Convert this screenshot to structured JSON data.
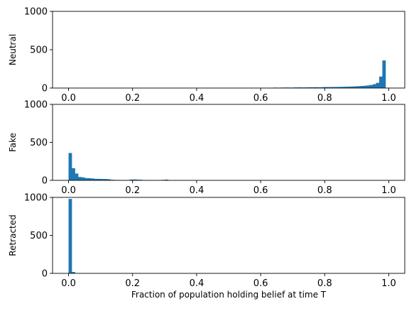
{
  "chart_data": {
    "type": "bar",
    "bar_color": "#1f77b4",
    "bin_width": 0.01,
    "xlim": [
      -0.05,
      1.05
    ],
    "ylim": [
      0,
      1000
    ],
    "xticks": [
      0.0,
      0.2,
      0.4,
      0.6,
      0.8,
      1.0
    ],
    "xtick_labels": [
      "0.0",
      "0.2",
      "0.4",
      "0.6",
      "0.8",
      "1.0"
    ],
    "yticks": [
      0,
      500,
      1000
    ],
    "ytick_labels": [
      "0",
      "500",
      "1000"
    ],
    "xlabel": "Fraction of population holding belief at time T",
    "grid": false,
    "panels": [
      {
        "ylabel": "Neutral",
        "bins": [
          {
            "x": 0.62,
            "y": 4
          },
          {
            "x": 0.64,
            "y": 6
          },
          {
            "x": 0.65,
            "y": 5
          },
          {
            "x": 0.66,
            "y": 6
          },
          {
            "x": 0.67,
            "y": 7
          },
          {
            "x": 0.68,
            "y": 7
          },
          {
            "x": 0.69,
            "y": 6
          },
          {
            "x": 0.7,
            "y": 8
          },
          {
            "x": 0.71,
            "y": 8
          },
          {
            "x": 0.72,
            "y": 9
          },
          {
            "x": 0.73,
            "y": 8
          },
          {
            "x": 0.74,
            "y": 9
          },
          {
            "x": 0.75,
            "y": 10
          },
          {
            "x": 0.76,
            "y": 10
          },
          {
            "x": 0.77,
            "y": 11
          },
          {
            "x": 0.78,
            "y": 10
          },
          {
            "x": 0.79,
            "y": 12
          },
          {
            "x": 0.8,
            "y": 13
          },
          {
            "x": 0.81,
            "y": 13
          },
          {
            "x": 0.82,
            "y": 14
          },
          {
            "x": 0.83,
            "y": 14
          },
          {
            "x": 0.84,
            "y": 15
          },
          {
            "x": 0.85,
            "y": 16
          },
          {
            "x": 0.86,
            "y": 17
          },
          {
            "x": 0.87,
            "y": 18
          },
          {
            "x": 0.88,
            "y": 20
          },
          {
            "x": 0.89,
            "y": 22
          },
          {
            "x": 0.9,
            "y": 24
          },
          {
            "x": 0.91,
            "y": 27
          },
          {
            "x": 0.92,
            "y": 30
          },
          {
            "x": 0.93,
            "y": 34
          },
          {
            "x": 0.94,
            "y": 40
          },
          {
            "x": 0.95,
            "y": 50
          },
          {
            "x": 0.96,
            "y": 68
          },
          {
            "x": 0.97,
            "y": 150
          },
          {
            "x": 0.98,
            "y": 360
          }
        ]
      },
      {
        "ylabel": "Fake",
        "bins": [
          {
            "x": 0.0,
            "y": 360
          },
          {
            "x": 0.01,
            "y": 160
          },
          {
            "x": 0.02,
            "y": 90
          },
          {
            "x": 0.03,
            "y": 45
          },
          {
            "x": 0.04,
            "y": 40
          },
          {
            "x": 0.05,
            "y": 30
          },
          {
            "x": 0.06,
            "y": 28
          },
          {
            "x": 0.07,
            "y": 25
          },
          {
            "x": 0.08,
            "y": 20
          },
          {
            "x": 0.09,
            "y": 20
          },
          {
            "x": 0.1,
            "y": 18
          },
          {
            "x": 0.11,
            "y": 18
          },
          {
            "x": 0.12,
            "y": 15
          },
          {
            "x": 0.13,
            "y": 8
          },
          {
            "x": 0.14,
            "y": 6
          },
          {
            "x": 0.15,
            "y": 5
          },
          {
            "x": 0.16,
            "y": 5
          },
          {
            "x": 0.17,
            "y": 4
          },
          {
            "x": 0.18,
            "y": 4
          },
          {
            "x": 0.19,
            "y": 10
          },
          {
            "x": 0.2,
            "y": 12
          },
          {
            "x": 0.21,
            "y": 10
          },
          {
            "x": 0.22,
            "y": 8
          },
          {
            "x": 0.24,
            "y": 4
          },
          {
            "x": 0.25,
            "y": 3
          },
          {
            "x": 0.27,
            "y": 3
          },
          {
            "x": 0.29,
            "y": 6
          },
          {
            "x": 0.3,
            "y": 10
          },
          {
            "x": 0.31,
            "y": 4
          },
          {
            "x": 0.33,
            "y": 3
          }
        ]
      },
      {
        "ylabel": "Retracted",
        "bins": [
          {
            "x": 0.0,
            "y": 980
          },
          {
            "x": 0.01,
            "y": 18
          }
        ]
      }
    ]
  }
}
